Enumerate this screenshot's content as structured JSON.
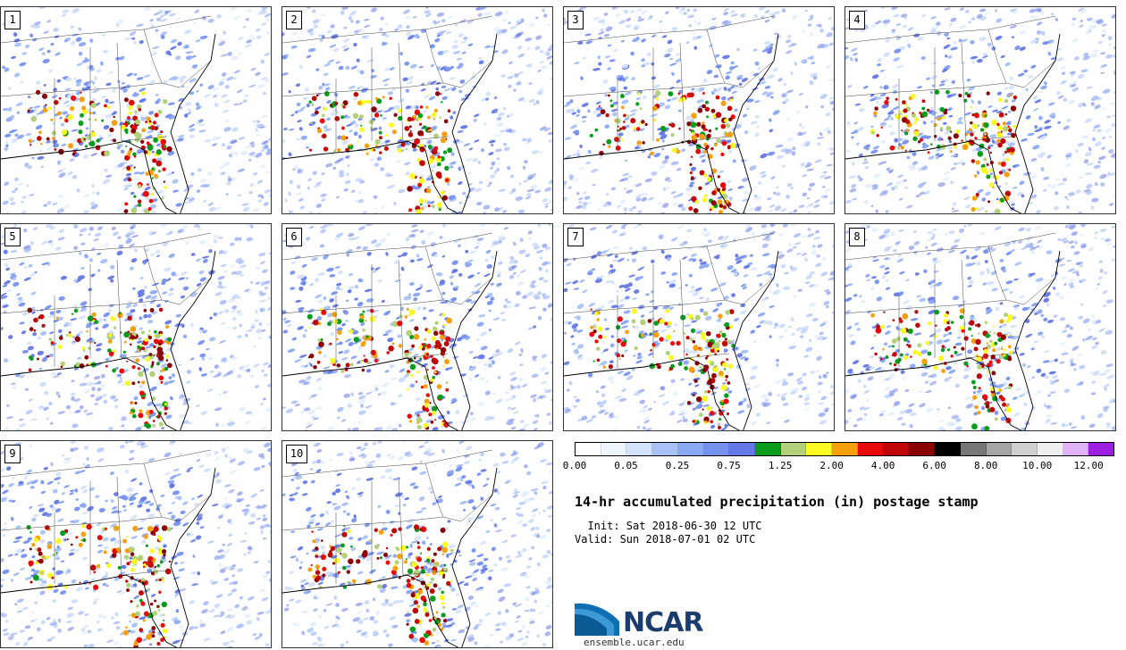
{
  "title": "14-hr accumulated precipitation (in) postage stamp",
  "init": "  Init: Sat 2018-06-30 12 UTC",
  "valid": "Valid: Sun 2018-07-01 02 UTC",
  "logo_text": "NCAR",
  "website": "ensemble.ucar.edu",
  "members": [
    "1",
    "2",
    "3",
    "4",
    "5",
    "6",
    "7",
    "8",
    "9",
    "10"
  ],
  "colorbar": {
    "colors": [
      "#ffffff",
      "#eef4ff",
      "#d4e2fb",
      "#a9c2f6",
      "#8aa8f4",
      "#7690ee",
      "#6478e6",
      "#089c1c",
      "#b3d17a",
      "#fbfb23",
      "#f6a00e",
      "#e8090a",
      "#c00707",
      "#8a0203",
      "#000000",
      "#777777",
      "#a5a5a5",
      "#cfcfcf",
      "#efefef",
      "#dfb3f5",
      "#9d1fe0"
    ],
    "tick_labels": [
      "0.00",
      "0.05",
      "0.25",
      "0.75",
      "1.25",
      "2.00",
      "4.00",
      "6.00",
      "8.00",
      "10.00",
      "12.00"
    ]
  }
}
